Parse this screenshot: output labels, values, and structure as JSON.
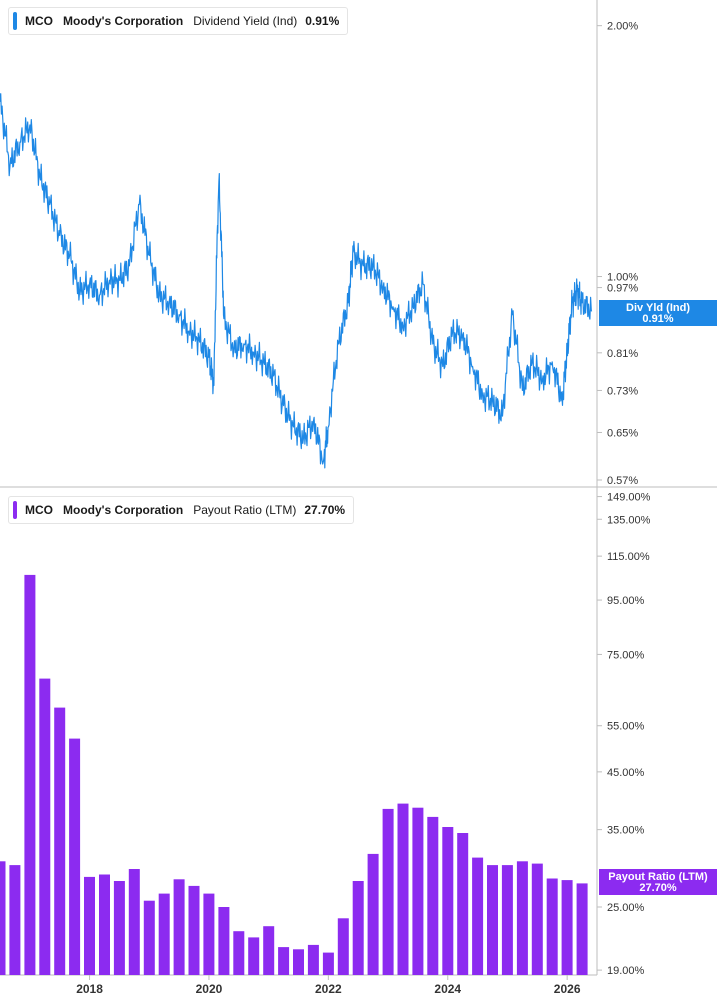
{
  "colors": {
    "yield": "#1e88e5",
    "payout": "#8c2bf0",
    "axis": "#bdbdbd",
    "tickText": "#333333"
  },
  "top_panel": {
    "ticker": "MCO",
    "company": "Moody's Corporation",
    "metric": "Dividend Yield (Ind)",
    "value": "0.91%",
    "badge_title": "Div Yld (Ind)",
    "badge_value": "0.91%"
  },
  "bottom_panel": {
    "ticker": "MCO",
    "company": "Moody's Corporation",
    "metric": "Payout Ratio (LTM)",
    "value": "27.70%",
    "badge_title": "Payout Ratio (LTM)",
    "badge_value": "27.70%"
  },
  "chart_data": [
    {
      "type": "line",
      "series": [
        {
          "x": [
            "2016-07",
            "2016-09",
            "2016-11",
            "2017-01",
            "2017-03",
            "2017-05",
            "2017-07",
            "2017-09",
            "2017-11",
            "2018-01",
            "2018-03",
            "2018-05",
            "2018-07",
            "2018-09",
            "2018-11",
            "2019-01",
            "2019-03",
            "2019-05",
            "2019-07",
            "2019-09",
            "2019-11",
            "2020-01",
            "2020-02",
            "2020-03",
            "2020-04",
            "2020-06",
            "2020-08",
            "2020-10",
            "2020-12",
            "2021-02",
            "2021-04",
            "2021-06",
            "2021-08",
            "2021-10",
            "2021-12",
            "2022-01",
            "2022-03",
            "2022-05",
            "2022-06",
            "2022-08",
            "2022-10",
            "2022-12",
            "2023-02",
            "2023-04",
            "2023-06",
            "2023-08",
            "2023-10",
            "2023-12",
            "2024-02",
            "2024-04",
            "2024-06",
            "2024-08",
            "2024-10",
            "2024-12",
            "2025-02",
            "2025-04",
            "2025-06",
            "2025-08",
            "2025-10",
            "2025-12",
            "2026-01",
            "2026-02",
            "2026-03",
            "2026-04",
            "2026-06"
          ],
          "y": [
            1.62,
            1.36,
            1.45,
            1.52,
            1.32,
            1.22,
            1.12,
            1.06,
            0.96,
            0.98,
            0.95,
            0.99,
            0.99,
            1.03,
            1.22,
            1.06,
            0.95,
            0.93,
            0.9,
            0.86,
            0.84,
            0.8,
            0.74,
            1.3,
            0.89,
            0.82,
            0.83,
            0.81,
            0.79,
            0.76,
            0.7,
            0.66,
            0.64,
            0.67,
            0.6,
            0.66,
            0.83,
            0.93,
            1.07,
            1.03,
            1.03,
            0.97,
            0.92,
            0.87,
            0.92,
            0.98,
            0.83,
            0.78,
            0.86,
            0.85,
            0.78,
            0.72,
            0.71,
            0.68,
            0.9,
            0.73,
            0.79,
            0.75,
            0.79,
            0.71,
            0.81,
            0.93,
            0.96,
            0.93,
            0.91
          ]
        }
      ],
      "yscale": "log",
      "ylim": [
        0.57,
        2.1
      ],
      "xlim": [
        "2016-07",
        "2026-07"
      ],
      "yticks": [
        "2.00%",
        "1.00%",
        "0.97%",
        "0.81%",
        "0.73%",
        "0.65%",
        "0.57%"
      ],
      "ytick_values": [
        2.0,
        1.0,
        0.97,
        0.81,
        0.73,
        0.65,
        0.57
      ],
      "grid": false
    },
    {
      "type": "bar",
      "x": [
        "2016-07",
        "2016-10",
        "2017-01",
        "2017-04",
        "2017-07",
        "2017-10",
        "2018-01",
        "2018-04",
        "2018-07",
        "2018-10",
        "2019-01",
        "2019-04",
        "2019-07",
        "2019-10",
        "2020-01",
        "2020-04",
        "2020-07",
        "2020-10",
        "2021-01",
        "2021-04",
        "2021-07",
        "2021-10",
        "2022-01",
        "2022-04",
        "2022-07",
        "2022-10",
        "2023-01",
        "2023-04",
        "2023-07",
        "2023-10",
        "2024-01",
        "2024-04",
        "2024-07",
        "2024-10",
        "2025-01",
        "2025-04",
        "2025-07",
        "2025-10",
        "2026-01",
        "2026-04"
      ],
      "series": [
        {
          "values": [
            30.5,
            30.0,
            106,
            67.5,
            59.5,
            52,
            28.5,
            28.8,
            28.0,
            29.5,
            25.7,
            26.5,
            28.2,
            27.4,
            26.5,
            25.0,
            22.5,
            21.9,
            23.0,
            21.0,
            20.8,
            21.2,
            20.5,
            23.8,
            28.0,
            31.5,
            38.3,
            39.2,
            38.5,
            37.0,
            35.4,
            34.5,
            31.0,
            30.0,
            30.0,
            30.5,
            30.2,
            28.3,
            28.1,
            27.7
          ]
        }
      ],
      "yscale": "log",
      "ylim": [
        18.6,
        152
      ],
      "xticks": [
        "2018",
        "2020",
        "2022",
        "2024",
        "2026"
      ],
      "xtick_values": [
        "2018-01",
        "2020-01",
        "2022-01",
        "2024-01",
        "2026-01"
      ],
      "yticks": [
        "149.00%",
        "135.00%",
        "115.00%",
        "95.00%",
        "75.00%",
        "55.00%",
        "45.00%",
        "35.00%",
        "25.00%",
        "19.00%"
      ],
      "ytick_values": [
        149,
        135,
        115,
        95,
        75,
        55,
        45,
        35,
        25,
        19
      ],
      "grid": false
    }
  ]
}
